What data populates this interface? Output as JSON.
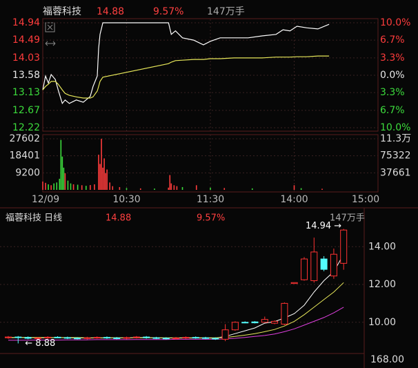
{
  "chart_data": [
    {
      "type": "line",
      "name": "福蓉科技",
      "price": "14.88",
      "change": "9.57%",
      "volume": "147万手",
      "up_color": "#ff3c3c",
      "down_color": "#3cdc3c",
      "x": [
        0,
        2,
        4,
        6,
        9,
        11,
        14,
        16,
        19,
        24,
        29,
        34,
        36,
        39,
        40,
        41,
        43,
        90,
        92,
        95,
        100,
        108,
        115,
        120,
        127,
        137,
        147,
        157,
        167,
        172,
        177,
        182,
        189,
        197,
        205
      ],
      "xlim": [
        0,
        240
      ],
      "xticks": [
        {
          "value": 0,
          "label": "12/09"
        },
        {
          "value": 60,
          "label": "10:30"
        },
        {
          "value": 120,
          "label": "11:30"
        },
        {
          "value": 180,
          "label": "14:00"
        },
        {
          "value": 240,
          "label": "15:00"
        }
      ],
      "ylim": [
        12.22,
        14.94
      ],
      "yticks": [
        14.94,
        14.49,
        14.03,
        13.58,
        13.13,
        12.67,
        12.22
      ],
      "y2lim": [
        -10,
        10
      ],
      "y2ticks": [
        {
          "value": 10,
          "label": "10.0%"
        },
        {
          "value": 6.7,
          "label": "6.7%"
        },
        {
          "value": 3.3,
          "label": "3.3%"
        },
        {
          "value": 0,
          "label": "0.0%"
        },
        {
          "value": -3.3,
          "label": "3.3%"
        },
        {
          "value": -6.7,
          "label": "6.7%"
        },
        {
          "value": -10,
          "label": "10.0%"
        }
      ],
      "grid": true,
      "series": [
        {
          "color": "#ffffff",
          "values": [
            13.2,
            13.56,
            13.38,
            13.6,
            13.47,
            13.2,
            12.85,
            12.94,
            12.85,
            12.94,
            12.88,
            13.03,
            13.29,
            13.56,
            14.28,
            14.64,
            14.94,
            14.94,
            14.64,
            14.73,
            14.55,
            14.49,
            14.37,
            14.46,
            14.55,
            14.55,
            14.55,
            14.6,
            14.64,
            14.76,
            14.73,
            14.85,
            14.81,
            14.78,
            14.9
          ]
        },
        {
          "color": "#e8e85a",
          "values": [
            13.2,
            13.29,
            13.35,
            13.42,
            13.42,
            13.35,
            13.2,
            13.11,
            13.06,
            13.02,
            12.99,
            12.99,
            13.02,
            13.17,
            13.29,
            13.42,
            13.53,
            13.88,
            13.92,
            13.96,
            13.97,
            13.99,
            13.99,
            14.01,
            14.01,
            14.03,
            14.03,
            14.03,
            14.05,
            14.05,
            14.05,
            14.06,
            14.06,
            14.08,
            14.08
          ]
        }
      ]
    },
    {
      "type": "bar",
      "x": [
        0,
        2,
        4,
        6,
        8,
        10,
        12,
        13,
        14,
        15,
        16,
        18,
        20,
        22,
        25,
        28,
        31,
        34,
        37,
        40,
        41,
        42,
        43,
        44,
        45,
        46,
        48,
        50,
        55,
        60,
        70,
        80,
        90,
        91,
        92,
        94,
        96,
        100,
        110,
        120,
        130,
        150,
        180,
        185,
        200
      ],
      "values": [
        4500,
        3800,
        3000,
        2500,
        3500,
        4000,
        6000,
        27000,
        18000,
        12000,
        9000,
        5000,
        3500,
        3000,
        2800,
        2500,
        2200,
        2600,
        3000,
        19000,
        14000,
        27602,
        12000,
        17000,
        9000,
        11000,
        4000,
        2000,
        1500,
        1000,
        800,
        700,
        1200,
        8000,
        3500,
        2500,
        2000,
        1500,
        2500,
        1200,
        1000,
        800,
        2500,
        900,
        600
      ],
      "colors": [
        "#ff3c3c",
        "#ff3c3c",
        "#3cdc3c",
        "#ff3c3c",
        "#3cdc3c",
        "#3cdc3c",
        "#3cdc3c",
        "#3cdc3c",
        "#3cdc3c",
        "#3cdc3c",
        "#ff3c3c",
        "#3cdc3c",
        "#3cdc3c",
        "#ff3c3c",
        "#3cdc3c",
        "#ff3c3c",
        "#3cdc3c",
        "#ff3c3c",
        "#ff3c3c",
        "#ff3c3c",
        "#ff3c3c",
        "#ff3c3c",
        "#ff3c3c",
        "#ff3c3c",
        "#ff3c3c",
        "#ff3c3c",
        "#ff3c3c",
        "#ff3c3c",
        "#ff3c3c",
        "#3cdc3c",
        "#ff3c3c",
        "#3cdc3c",
        "#ff3c3c",
        "#ff3c3c",
        "#ff3c3c",
        "#ff3c3c",
        "#ff3c3c",
        "#3cdc3c",
        "#ff3c3c",
        "#3cdc3c",
        "#ff3c3c",
        "#3cdc3c",
        "#ff3c3c",
        "#3cdc3c",
        "#ff3c3c"
      ],
      "xlim": [
        0,
        240
      ],
      "ylim": [
        0,
        27602
      ],
      "yticks": [
        27602,
        18401,
        9200
      ],
      "y2lim": [
        0,
        112983
      ],
      "y2ticks": [
        {
          "value": 112983,
          "label": "11.3万"
        },
        75322,
        37661
      ]
    },
    {
      "type": "candlestick",
      "title": "福蓉科技 日线",
      "price": "14.88",
      "change": "9.57%",
      "volume": "147万手",
      "up_color": "#ff3232",
      "down_color": "#54fcfc",
      "categories": [
        null,
        null,
        null,
        null,
        null,
        null,
        null,
        null,
        null,
        null,
        null,
        null,
        null,
        null,
        null,
        null,
        null,
        null,
        null,
        null,
        null,
        null,
        null,
        null,
        null,
        null,
        null,
        null,
        null,
        null,
        null,
        null,
        null,
        null,
        null
      ],
      "open": [
        9.18,
        9.22,
        9.2,
        9.15,
        9.17,
        9.21,
        9.19,
        9.16,
        9.14,
        9.18,
        9.2,
        9.17,
        9.15,
        9.19,
        9.22,
        9.18,
        9.16,
        9.13,
        9.17,
        9.2,
        9.18,
        9.15,
        9.1,
        9.6,
        10.0,
        10.02,
        10.0,
        9.95,
        9.9,
        12.05,
        12.25,
        12.2,
        13.35,
        12.45,
        13.12
      ],
      "high": [
        9.27,
        9.27,
        9.25,
        9.22,
        9.26,
        9.26,
        9.24,
        9.21,
        9.23,
        9.25,
        9.25,
        9.22,
        9.24,
        9.27,
        9.27,
        9.23,
        9.21,
        9.22,
        9.25,
        9.25,
        9.23,
        9.2,
        9.9,
        10.05,
        10.05,
        10.06,
        10.3,
        10.1,
        11.05,
        12.1,
        13.45,
        14.48,
        13.5,
        13.9,
        14.94
      ],
      "low": [
        9.13,
        8.88,
        9.1,
        9.1,
        9.12,
        9.16,
        9.11,
        9.09,
        9.09,
        9.13,
        9.12,
        9.1,
        9.1,
        9.14,
        9.13,
        9.11,
        9.08,
        9.08,
        9.12,
        9.13,
        9.1,
        9.07,
        9.0,
        9.55,
        9.95,
        9.94,
        9.98,
        9.9,
        9.85,
        12.05,
        12.2,
        12.1,
        12.7,
        12.3,
        12.78
      ],
      "close": [
        9.22,
        9.2,
        9.15,
        9.17,
        9.21,
        9.19,
        9.16,
        9.14,
        9.18,
        9.2,
        9.17,
        9.15,
        9.19,
        9.22,
        9.18,
        9.16,
        9.13,
        9.17,
        9.2,
        9.18,
        9.15,
        9.12,
        9.6,
        10.0,
        9.98,
        9.97,
        10.15,
        10.05,
        11.0,
        12.1,
        13.35,
        13.72,
        12.8,
        13.6,
        14.88
      ],
      "lines": [
        {
          "color": "#ffffff",
          "values": [
            9.18,
            9.19,
            9.19,
            9.18,
            9.18,
            9.19,
            9.18,
            9.17,
            9.17,
            9.17,
            9.18,
            9.18,
            9.18,
            9.19,
            9.19,
            9.18,
            9.17,
            9.17,
            9.17,
            9.17,
            9.17,
            9.16,
            9.25,
            9.4,
            9.55,
            9.7,
            9.95,
            10.03,
            10.23,
            10.46,
            10.9,
            11.6,
            12.2,
            12.68,
            13.6
          ]
        },
        {
          "color": "#e8e85a",
          "values": [
            9.2,
            9.2,
            9.2,
            9.2,
            9.19,
            9.19,
            9.19,
            9.19,
            9.18,
            9.18,
            9.18,
            9.18,
            9.18,
            9.18,
            9.18,
            9.18,
            9.18,
            9.18,
            9.18,
            9.18,
            9.18,
            9.18,
            9.2,
            9.25,
            9.32,
            9.4,
            9.5,
            9.62,
            9.8,
            10.05,
            10.4,
            10.8,
            11.2,
            11.6,
            12.1
          ]
        },
        {
          "color": "#e040e0",
          "values": [
            9.05,
            9.05,
            9.05,
            9.06,
            9.06,
            9.06,
            9.07,
            9.07,
            9.07,
            9.08,
            9.08,
            9.08,
            9.08,
            9.09,
            9.09,
            9.09,
            9.09,
            9.1,
            9.1,
            9.1,
            9.1,
            9.1,
            9.12,
            9.15,
            9.2,
            9.25,
            9.3,
            9.38,
            9.5,
            9.65,
            9.85,
            10.05,
            10.25,
            10.5,
            10.8
          ]
        }
      ],
      "ylim": [
        8.42,
        15.91
      ],
      "yticks": [
        {
          "value": 14,
          "label": "14.00"
        },
        {
          "value": 12,
          "label": "12.00"
        },
        {
          "value": 10,
          "label": "10.00"
        }
      ],
      "grid": true,
      "annotations": [
        {
          "text": "14.94 →"
        },
        {
          "text": "← 8.88"
        }
      ],
      "sub_label": "168.00"
    }
  ]
}
